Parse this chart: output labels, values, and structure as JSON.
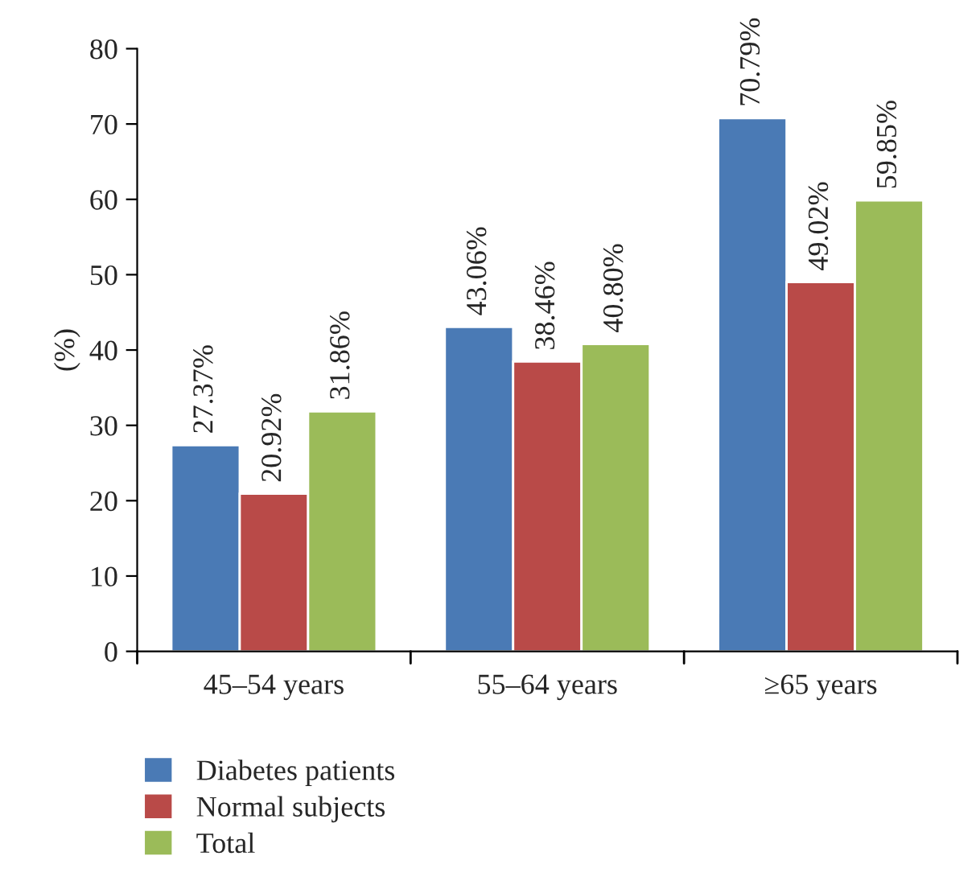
{
  "chart_data": {
    "type": "bar",
    "ylabel": "(%)",
    "categories": [
      "45–54 years",
      "55–64 years",
      "≥65 years"
    ],
    "series": [
      {
        "name": "Diabetes patients",
        "color": "#4a7ab5",
        "values": [
          27.37,
          43.06,
          70.79
        ],
        "value_labels": [
          "27.37%",
          "43.06%",
          "70.79%"
        ]
      },
      {
        "name": "Normal subjects",
        "color": "#b94a48",
        "values": [
          20.92,
          38.46,
          49.02
        ],
        "value_labels": [
          "20.92%",
          "38.46%",
          "49.02%"
        ]
      },
      {
        "name": "Total",
        "color": "#9bbb59",
        "values": [
          31.86,
          40.8,
          59.85
        ],
        "value_labels": [
          "31.86%",
          "40.80%",
          "59.85%"
        ]
      }
    ],
    "ylim": [
      0,
      80
    ],
    "yticks": [
      0,
      10,
      20,
      30,
      40,
      50,
      60,
      70,
      80
    ],
    "grid": false,
    "legend": "bottom left"
  }
}
